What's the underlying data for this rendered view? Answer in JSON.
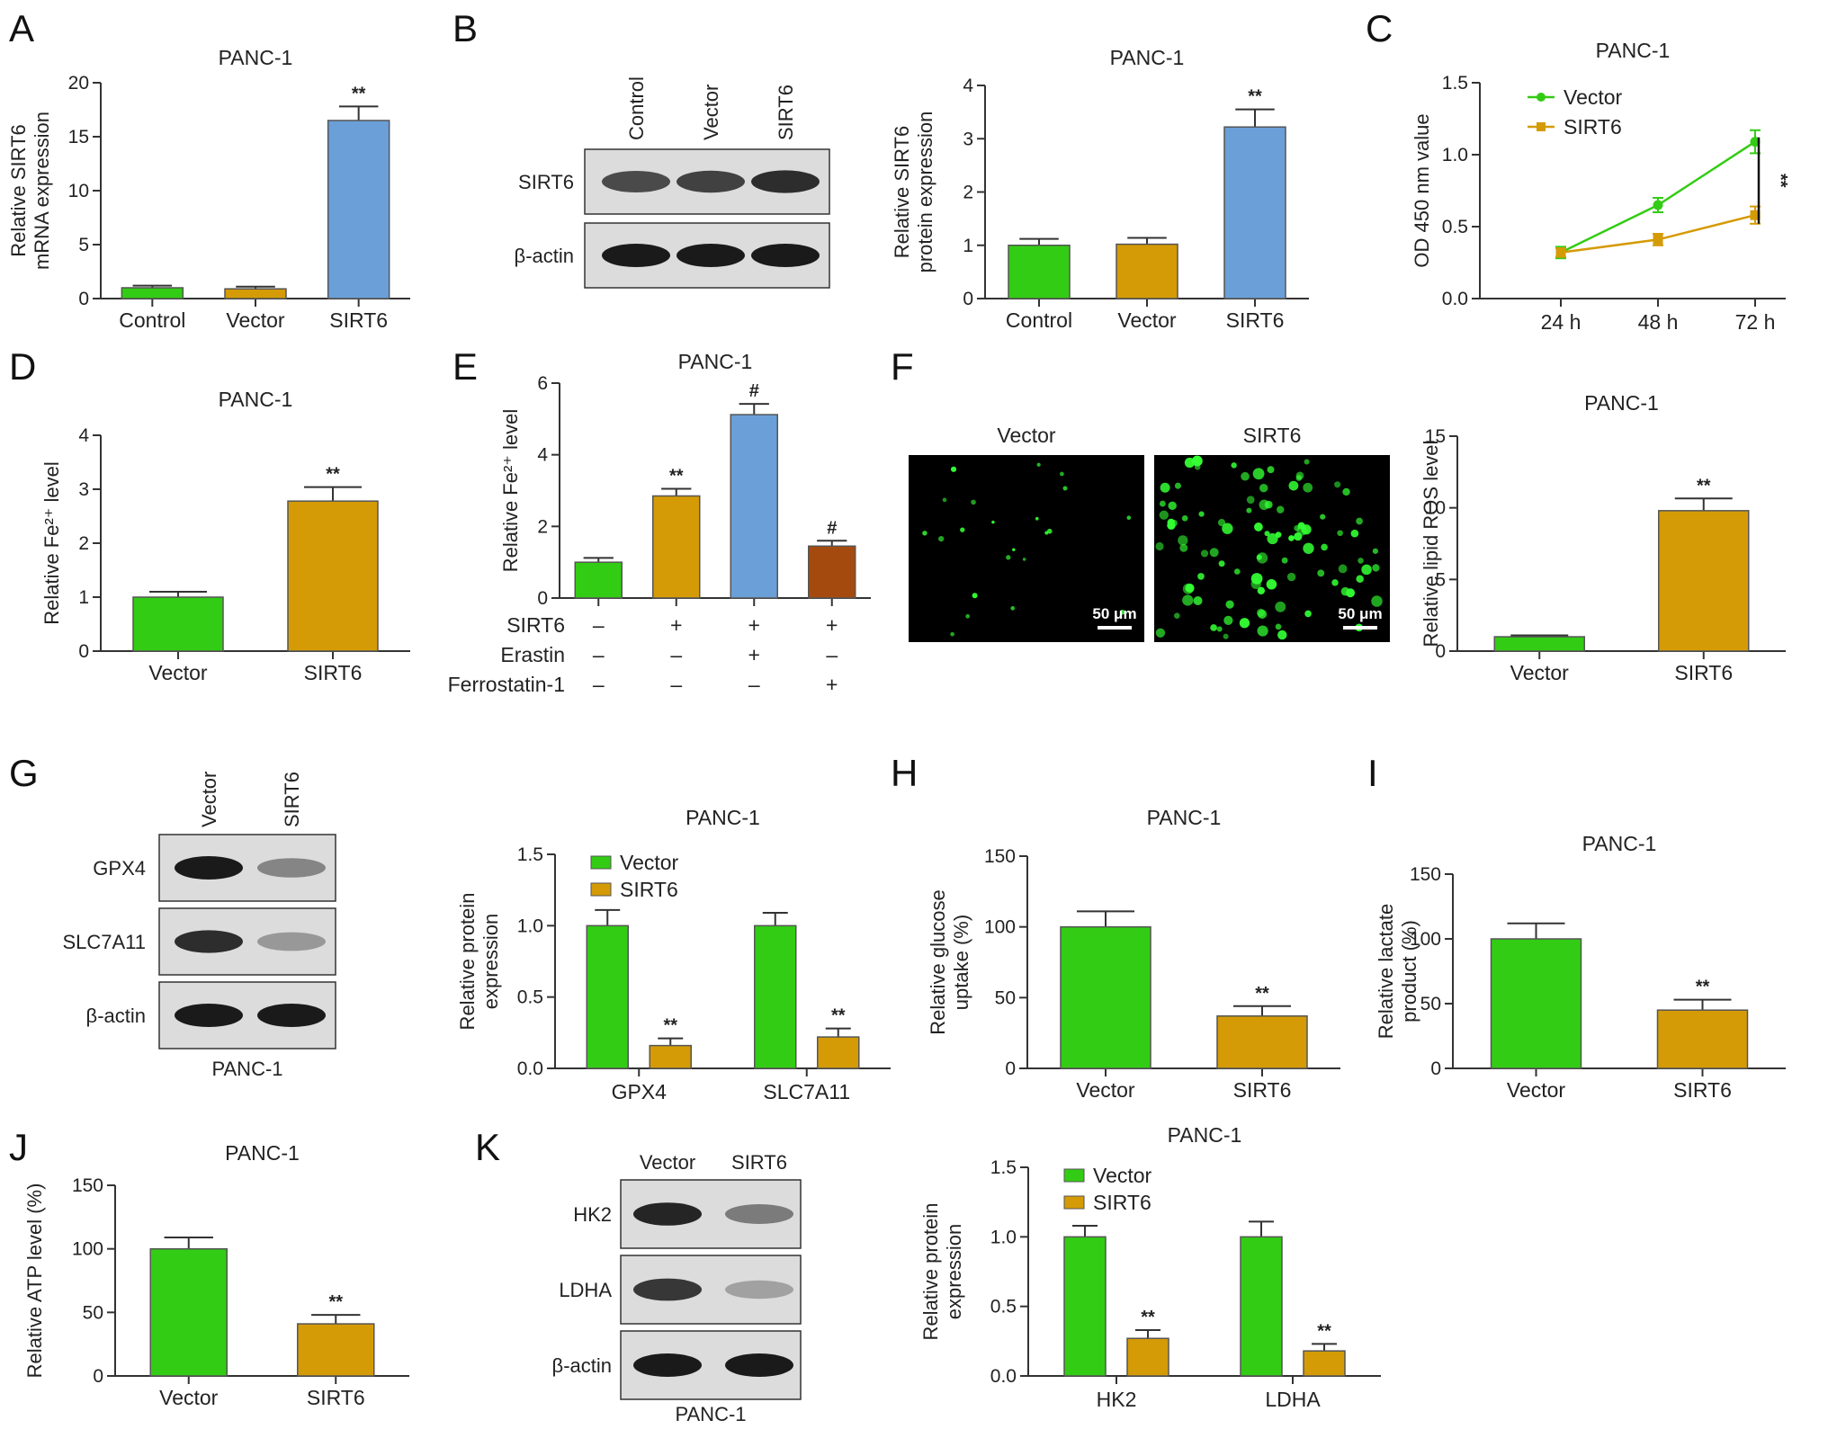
{
  "colors": {
    "green": "#33CC14",
    "gold": "#D49B06",
    "blue": "#6A9FD8",
    "brown": "#A54A0E",
    "axis": "#333333",
    "err": "#333333",
    "bandDark": "#1a1a1a",
    "blotBg": "#dcdcdc",
    "microGreen": "#33ff33"
  },
  "chart_data": [
    {
      "panel": "A",
      "type": "bar",
      "title": "PANC-1",
      "ylabel": "Relative SIRT6 mRNA expression",
      "categories": [
        "Control",
        "Vector",
        "SIRT6"
      ],
      "values": [
        1.0,
        0.9,
        16.5
      ],
      "errors": [
        0.2,
        0.2,
        1.3
      ],
      "colors": [
        "#33CC14",
        "#D49B06",
        "#6A9FD8"
      ],
      "ylim": [
        0,
        20
      ],
      "yticks": [
        0,
        5,
        10,
        15,
        20
      ],
      "sig": [
        "",
        "",
        "**"
      ]
    },
    {
      "panel": "B",
      "type": "bar",
      "title": "PANC-1",
      "ylabel": "Relative SIRT6 protein expression",
      "categories": [
        "Control",
        "Vector",
        "SIRT6"
      ],
      "values": [
        1.0,
        1.02,
        3.22
      ],
      "errors": [
        0.12,
        0.12,
        0.33
      ],
      "colors": [
        "#33CC14",
        "#D49B06",
        "#6A9FD8"
      ],
      "ylim": [
        0,
        4
      ],
      "yticks": [
        0,
        1,
        2,
        3,
        4
      ],
      "sig": [
        "",
        "",
        "**"
      ]
    },
    {
      "panel": "C",
      "type": "line",
      "title": "PANC-1",
      "ylabel": "OD 450 nm value",
      "x": [
        "24 h",
        "48 h",
        "72 h"
      ],
      "ylim": [
        0,
        1.5
      ],
      "yticks": [
        "0.0",
        "0.5",
        "1.0",
        "1.5"
      ],
      "series": [
        {
          "name": "Vector",
          "values": [
            0.32,
            0.65,
            1.09
          ],
          "errors": [
            0.04,
            0.05,
            0.08
          ],
          "color": "#33CC14"
        },
        {
          "name": "SIRT6",
          "values": [
            0.32,
            0.41,
            0.58
          ],
          "errors": [
            0.03,
            0.04,
            0.06
          ],
          "color": "#D49B06"
        }
      ],
      "sig": "**",
      "legend": "top-left"
    },
    {
      "panel": "D",
      "type": "bar",
      "title": "PANC-1",
      "ylabel": "Relative Fe²⁺ level",
      "categories": [
        "Vector",
        "SIRT6"
      ],
      "values": [
        1.0,
        2.78
      ],
      "errors": [
        0.1,
        0.26
      ],
      "colors": [
        "#33CC14",
        "#D49B06"
      ],
      "ylim": [
        0,
        4
      ],
      "yticks": [
        0,
        1,
        2,
        3,
        4
      ],
      "sig": [
        "",
        "**"
      ]
    },
    {
      "panel": "E",
      "type": "bar",
      "title": "PANC-1",
      "ylabel": "Relative Fe²⁺ level",
      "categories": [
        "",
        "",
        "",
        ""
      ],
      "values": [
        1.0,
        2.85,
        5.12,
        1.45
      ],
      "errors": [
        0.12,
        0.2,
        0.3,
        0.15
      ],
      "colors": [
        "#33CC14",
        "#D49B06",
        "#6A9FD8",
        "#A54A0E"
      ],
      "ylim": [
        0,
        6
      ],
      "yticks": [
        0,
        2,
        4,
        6
      ],
      "sig": [
        "",
        "**",
        "#",
        "#"
      ],
      "treatments": [
        {
          "label": "SIRT6",
          "marks": [
            "–",
            "+",
            "+",
            "+"
          ]
        },
        {
          "label": "Erastin",
          "marks": [
            "–",
            "–",
            "+",
            "–"
          ]
        },
        {
          "label": "Ferrostatin-1",
          "marks": [
            "–",
            "–",
            "–",
            "+"
          ]
        }
      ]
    },
    {
      "panel": "F",
      "type": "bar",
      "title": "PANC-1",
      "ylabel": "Relative lipid ROS level",
      "categories": [
        "Vector",
        "SIRT6"
      ],
      "values": [
        1.0,
        9.8
      ],
      "errors": [
        0.1,
        0.85
      ],
      "colors": [
        "#33CC14",
        "#D49B06"
      ],
      "ylim": [
        0,
        15
      ],
      "yticks": [
        0,
        5,
        10,
        15
      ],
      "sig": [
        "",
        "**"
      ]
    },
    {
      "panel": "G",
      "type": "bar",
      "title": "PANC-1",
      "ylabel": "Relative protein expression",
      "categories": [
        "GPX4",
        "SLC7A11"
      ],
      "series": [
        {
          "name": "Vector",
          "values": [
            1.0,
            1.0
          ],
          "errors": [
            0.11,
            0.09
          ],
          "color": "#33CC14"
        },
        {
          "name": "SIRT6",
          "values": [
            0.16,
            0.22
          ],
          "errors": [
            0.05,
            0.06
          ],
          "color": "#D49B06"
        }
      ],
      "ylim": [
        0,
        1.5
      ],
      "yticks": [
        "0.0",
        "0.5",
        "1.0",
        "1.5"
      ],
      "sig": [
        [
          "",
          ""
        ],
        [
          "**",
          "**"
        ]
      ],
      "legend": "top-left"
    },
    {
      "panel": "H",
      "type": "bar",
      "title": "PANC-1",
      "ylabel": "Relative glucose uptake (%)",
      "categories": [
        "Vector",
        "SIRT6"
      ],
      "values": [
        100,
        37
      ],
      "errors": [
        11,
        7
      ],
      "colors": [
        "#33CC14",
        "#D49B06"
      ],
      "ylim": [
        0,
        150
      ],
      "yticks": [
        0,
        50,
        100,
        150
      ],
      "sig": [
        "",
        "**"
      ]
    },
    {
      "panel": "I",
      "type": "bar",
      "title": "PANC-1",
      "ylabel": "Relative lactate product (%)",
      "categories": [
        "Vector",
        "SIRT6"
      ],
      "values": [
        100,
        45
      ],
      "errors": [
        12,
        8
      ],
      "colors": [
        "#33CC14",
        "#D49B06"
      ],
      "ylim": [
        0,
        150
      ],
      "yticks": [
        0,
        50,
        100,
        150
      ],
      "sig": [
        "",
        "**"
      ]
    },
    {
      "panel": "J",
      "type": "bar",
      "title": "PANC-1",
      "ylabel": "Relative ATP level (%)",
      "categories": [
        "Vector",
        "SIRT6"
      ],
      "values": [
        100,
        41
      ],
      "errors": [
        9,
        7
      ],
      "colors": [
        "#33CC14",
        "#D49B06"
      ],
      "ylim": [
        0,
        150
      ],
      "yticks": [
        0,
        50,
        100,
        150
      ],
      "sig": [
        "",
        "**"
      ]
    },
    {
      "panel": "K",
      "type": "bar",
      "title": "PANC-1",
      "ylabel": "Relative protein expression",
      "categories": [
        "HK2",
        "LDHA"
      ],
      "series": [
        {
          "name": "Vector",
          "values": [
            1.0,
            1.0
          ],
          "errors": [
            0.08,
            0.11
          ],
          "color": "#33CC14"
        },
        {
          "name": "SIRT6",
          "values": [
            0.27,
            0.18
          ],
          "errors": [
            0.06,
            0.05
          ],
          "color": "#D49B06"
        }
      ],
      "ylim": [
        0,
        1.5
      ],
      "yticks": [
        "0.0",
        "0.5",
        "1.0",
        "1.5"
      ],
      "sig": [
        [
          "",
          ""
        ],
        [
          "**",
          "**"
        ]
      ],
      "legend": "top-left"
    }
  ],
  "blots": [
    {
      "panel": "B",
      "lanes": [
        "Control",
        "Vector",
        "SIRT6"
      ],
      "rows": [
        {
          "label": "SIRT6",
          "intensity": [
            0.75,
            0.8,
            0.9
          ]
        },
        {
          "label": "β-actin",
          "intensity": [
            1,
            1,
            1
          ]
        }
      ]
    },
    {
      "panel": "G",
      "lanes": [
        "Vector",
        "SIRT6"
      ],
      "rows": [
        {
          "label": "GPX4",
          "intensity": [
            1,
            0.45
          ]
        },
        {
          "label": "SLC7A11",
          "intensity": [
            0.9,
            0.35
          ]
        },
        {
          "label": "β-actin",
          "intensity": [
            1,
            1
          ]
        }
      ],
      "caption": "PANC-1"
    },
    {
      "panel": "K",
      "lanes": [
        "Vector",
        "SIRT6"
      ],
      "rows": [
        {
          "label": "HK2",
          "intensity": [
            0.95,
            0.5
          ]
        },
        {
          "label": "LDHA",
          "intensity": [
            0.85,
            0.3
          ]
        },
        {
          "label": "β-actin",
          "intensity": [
            1,
            1
          ]
        }
      ],
      "caption": "PANC-1"
    }
  ],
  "microscopy": {
    "panel": "F",
    "images": [
      {
        "label": "Vector",
        "density": 22
      },
      {
        "label": "SIRT6",
        "density": 95
      }
    ],
    "scale_bar": "50 μm"
  },
  "panel_letters": [
    "A",
    "B",
    "C",
    "D",
    "E",
    "F",
    "G",
    "H",
    "I",
    "J",
    "K"
  ]
}
